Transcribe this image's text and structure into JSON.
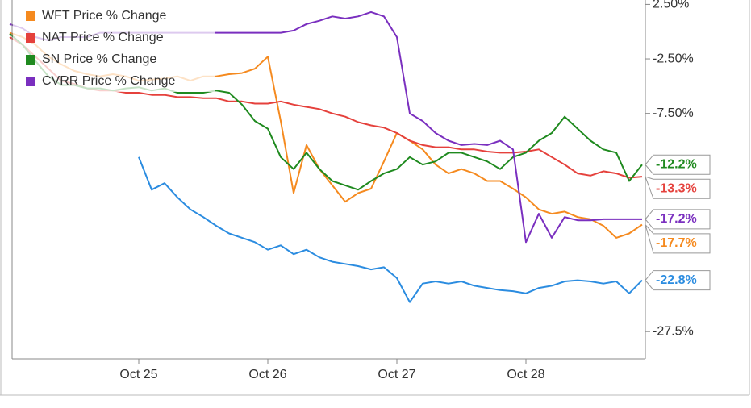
{
  "chart_data": {
    "type": "line",
    "categories": [
      null,
      null,
      null,
      null,
      null,
      null,
      null,
      null,
      null,
      null,
      "Oct 25",
      null,
      null,
      null,
      null,
      null,
      null,
      null,
      null,
      null,
      "Oct 26",
      null,
      null,
      null,
      null,
      null,
      null,
      null,
      null,
      null,
      "Oct 27",
      null,
      null,
      null,
      null,
      null,
      null,
      null,
      null,
      null,
      "Oct 28",
      null,
      null,
      null,
      null,
      null,
      null,
      null,
      null,
      null
    ],
    "series": [
      {
        "color": "#2b8ce0",
        "values": [
          null,
          null,
          null,
          null,
          null,
          null,
          null,
          null,
          null,
          null,
          -11.5,
          -14.5,
          -13.9,
          -15.2,
          -16.3,
          -17.0,
          -17.8,
          -18.5,
          -18.9,
          -19.3,
          -20.0,
          -19.6,
          -20.4,
          -20.0,
          -20.7,
          -21.1,
          -21.3,
          -21.5,
          -21.8,
          -21.6,
          -22.6,
          -24.8,
          -23.1,
          -22.9,
          -23.1,
          -22.9,
          -23.3,
          -23.5,
          -23.7,
          -23.8,
          -24.0,
          -23.5,
          -23.3,
          -22.9,
          -22.8,
          -22.9,
          -23.1,
          -22.9,
          -24.0,
          -22.8
        ],
        "value_labels": [
          null,
          null,
          null,
          null,
          null,
          null,
          null,
          null,
          null,
          null,
          null,
          null,
          null,
          null,
          null,
          null,
          null,
          null,
          null,
          null,
          null,
          null,
          null,
          null,
          null,
          null,
          null,
          null,
          null,
          null,
          null,
          null,
          null,
          null,
          null,
          null,
          null,
          null,
          null,
          null,
          null,
          null,
          null,
          null,
          null,
          null,
          null,
          null,
          null,
          "-22.8%"
        ]
      },
      {
        "name": "WFT Price % Change",
        "color": "#f58a1f",
        "values": [
          -0.1,
          -0.5,
          -1.2,
          -2.3,
          -3.0,
          -3.6,
          -3.9,
          -4.1,
          -3.9,
          -4.1,
          -4.5,
          -4.4,
          -4.3,
          -4.1,
          -4.5,
          -4.1,
          -4.1,
          -3.9,
          -3.8,
          -3.4,
          -2.3,
          -8.2,
          -14.8,
          -10.4,
          -12.6,
          -14.1,
          -15.6,
          -14.8,
          -14.4,
          -11.9,
          -9.3,
          -10.0,
          -10.8,
          -12.2,
          -13.0,
          -12.6,
          -13.0,
          -13.7,
          -13.7,
          -14.4,
          -15.2,
          -16.3,
          -16.7,
          -16.5,
          -17.0,
          -17.2,
          -17.8,
          -18.9,
          -18.5,
          -17.7
        ],
        "value_labels": [
          null,
          null,
          null,
          null,
          null,
          null,
          null,
          null,
          null,
          null,
          null,
          null,
          null,
          null,
          null,
          null,
          null,
          null,
          null,
          null,
          null,
          null,
          null,
          null,
          null,
          null,
          null,
          null,
          null,
          null,
          null,
          null,
          null,
          null,
          null,
          null,
          null,
          null,
          null,
          null,
          null,
          null,
          null,
          null,
          null,
          null,
          null,
          null,
          null,
          "-17.7%"
        ]
      },
      {
        "name": "NAT Price % Change",
        "color": "#e5413c",
        "values": [
          -0.5,
          -1.2,
          -2.3,
          -3.4,
          -4.5,
          -4.8,
          -5.2,
          -5.4,
          -5.4,
          -5.6,
          -5.6,
          -5.8,
          -5.8,
          -6.0,
          -6.0,
          -6.1,
          -6.1,
          -6.4,
          -6.4,
          -6.6,
          -6.6,
          -6.4,
          -6.7,
          -6.9,
          -7.1,
          -7.5,
          -7.8,
          -8.3,
          -8.6,
          -8.8,
          -9.3,
          -10.0,
          -10.4,
          -10.6,
          -10.6,
          -10.8,
          -10.8,
          -11.0,
          -11.1,
          -11.1,
          -11.0,
          -10.8,
          -11.5,
          -12.2,
          -13.0,
          -13.2,
          -12.8,
          -13.0,
          -13.4,
          -13.3
        ],
        "value_labels": [
          null,
          null,
          null,
          null,
          null,
          null,
          null,
          null,
          null,
          null,
          null,
          null,
          null,
          null,
          null,
          null,
          null,
          null,
          null,
          null,
          null,
          null,
          null,
          null,
          null,
          null,
          null,
          null,
          null,
          null,
          null,
          null,
          null,
          null,
          null,
          null,
          null,
          null,
          null,
          null,
          null,
          null,
          null,
          null,
          null,
          null,
          null,
          null,
          null,
          "-13.3%"
        ]
      },
      {
        "name": "SN Price % Change",
        "color": "#1f8a1f",
        "values": [
          -0.2,
          -1.2,
          -2.7,
          -4.1,
          -4.9,
          -4.9,
          -5.2,
          -5.2,
          -5.4,
          -5.2,
          -5.1,
          -5.4,
          -5.2,
          -5.6,
          -5.6,
          -5.6,
          -5.4,
          -5.6,
          -6.7,
          -8.2,
          -8.9,
          -11.5,
          -12.6,
          -11.1,
          -12.6,
          -13.7,
          -14.1,
          -14.5,
          -13.7,
          -13.0,
          -12.6,
          -11.5,
          -12.2,
          -11.9,
          -11.1,
          -11.1,
          -11.5,
          -11.9,
          -12.6,
          -11.5,
          -11.1,
          -10.0,
          -9.3,
          -7.8,
          -8.9,
          -10.0,
          -10.8,
          -11.1,
          -13.7,
          -12.2
        ],
        "value_labels": [
          null,
          null,
          null,
          null,
          null,
          null,
          null,
          null,
          null,
          null,
          null,
          null,
          null,
          null,
          null,
          null,
          null,
          null,
          null,
          null,
          null,
          null,
          null,
          null,
          null,
          null,
          null,
          null,
          null,
          null,
          null,
          null,
          null,
          null,
          null,
          null,
          null,
          null,
          null,
          null,
          null,
          null,
          null,
          null,
          null,
          null,
          null,
          null,
          null,
          "-12.2%"
        ]
      },
      {
        "name": "CVRR Price % Change",
        "color": "#7a2fbf",
        "values": [
          0.7,
          0.3,
          -0.5,
          -0.8,
          -0.5,
          -0.5,
          -0.5,
          -0.1,
          -0.1,
          -0.1,
          -0.1,
          -0.1,
          -0.1,
          -0.1,
          -0.1,
          -0.1,
          -0.1,
          -0.1,
          -0.1,
          -0.1,
          -0.1,
          -0.1,
          0.1,
          0.7,
          1.0,
          1.4,
          1.2,
          1.4,
          1.8,
          1.4,
          -0.5,
          -7.5,
          -8.2,
          -9.3,
          -10.0,
          -10.4,
          -10.3,
          -10.4,
          -10.0,
          -10.8,
          -19.3,
          -16.7,
          -18.9,
          -17.0,
          -17.3,
          -17.3,
          -17.2,
          -17.2,
          -17.2,
          -17.2
        ],
        "value_labels": [
          null,
          null,
          null,
          null,
          null,
          null,
          null,
          null,
          null,
          null,
          null,
          null,
          null,
          null,
          null,
          null,
          null,
          null,
          null,
          null,
          null,
          null,
          null,
          null,
          null,
          null,
          null,
          null,
          null,
          null,
          null,
          null,
          null,
          null,
          null,
          null,
          null,
          null,
          null,
          null,
          null,
          null,
          null,
          null,
          null,
          null,
          null,
          null,
          null,
          "-17.2%"
        ]
      }
    ],
    "ylim": [
      -30,
      2.9
    ],
    "yticks": [
      {
        "value": 2.5,
        "label": "2.50%"
      },
      {
        "value": -2.5,
        "label": "-2.50%"
      },
      {
        "value": -7.5,
        "label": "-7.50%"
      },
      {
        "value": -27.5,
        "label": "-27.5%"
      }
    ],
    "legend": "top-left"
  }
}
